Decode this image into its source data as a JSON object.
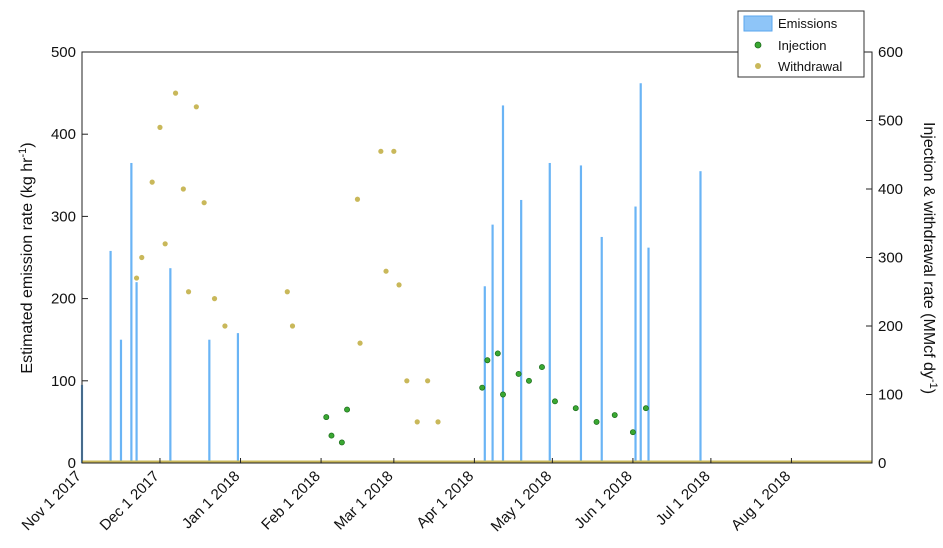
{
  "chart_data": {
    "type": "bar",
    "title": "",
    "ylabel": "Estimated emission rate (kg hr",
    "ylabel_sup": "-1",
    "ylabel_end": ")",
    "y2label": "Injection & withdrawal rate (MMcf dy",
    "y2label_sup": "-1",
    "y2label_end": ")",
    "ylim": [
      0,
      500
    ],
    "y2lim": [
      0,
      600
    ],
    "yticks": [
      "0",
      "100",
      "200",
      "300",
      "400",
      "500"
    ],
    "y2ticks": [
      "0",
      "100",
      "200",
      "300",
      "400",
      "500",
      "600"
    ],
    "x_start": "2017-11-01",
    "xticks": [
      {
        "date": "2017-11-01",
        "label": "Nov 1 2017"
      },
      {
        "date": "2017-12-01",
        "label": "Dec 1 2017"
      },
      {
        "date": "2018-01-01",
        "label": "Jan 1 2018"
      },
      {
        "date": "2018-02-01",
        "label": "Feb 1 2018"
      },
      {
        "date": "2018-03-01",
        "label": "Mar 1 2018"
      },
      {
        "date": "2018-04-01",
        "label": "Apr 1 2018"
      },
      {
        "date": "2018-05-01",
        "label": "May 1 2018"
      },
      {
        "date": "2018-06-01",
        "label": "Jun 1 2018"
      },
      {
        "date": "2018-07-01",
        "label": "Jul 1 2018"
      },
      {
        "date": "2018-08-01",
        "label": "Aug 1 2018"
      }
    ],
    "grid": false,
    "legend_position": "top-right",
    "series": [
      {
        "name": "Emissions",
        "kind": "bar",
        "axis": "left",
        "color": "#6ab4f5",
        "peaks": [
          {
            "date": "2017-11-01",
            "value": 95
          },
          {
            "date": "2017-11-12",
            "value": 258
          },
          {
            "date": "2017-11-16",
            "value": 150
          },
          {
            "date": "2017-11-20",
            "value": 365
          },
          {
            "date": "2017-11-22",
            "value": 220
          },
          {
            "date": "2017-12-05",
            "value": 237
          },
          {
            "date": "2017-12-20",
            "value": 150
          },
          {
            "date": "2017-12-31",
            "value": 158
          },
          {
            "date": "2018-04-05",
            "value": 215
          },
          {
            "date": "2018-04-08",
            "value": 290
          },
          {
            "date": "2018-04-12",
            "value": 435
          },
          {
            "date": "2018-04-19",
            "value": 320
          },
          {
            "date": "2018-04-30",
            "value": 365
          },
          {
            "date": "2018-05-12",
            "value": 362
          },
          {
            "date": "2018-05-20",
            "value": 275
          },
          {
            "date": "2018-06-02",
            "value": 312
          },
          {
            "date": "2018-06-04",
            "value": 462
          },
          {
            "date": "2018-06-07",
            "value": 262
          },
          {
            "date": "2018-06-27",
            "value": 355
          }
        ]
      },
      {
        "name": "Injection",
        "kind": "scatter",
        "axis": "right",
        "color": "#3aa832",
        "points": [
          {
            "date": "2018-02-03",
            "value": 67
          },
          {
            "date": "2018-02-05",
            "value": 40
          },
          {
            "date": "2018-02-09",
            "value": 30
          },
          {
            "date": "2018-02-11",
            "value": 78
          },
          {
            "date": "2018-04-04",
            "value": 110
          },
          {
            "date": "2018-04-06",
            "value": 150
          },
          {
            "date": "2018-04-10",
            "value": 160
          },
          {
            "date": "2018-04-12",
            "value": 100
          },
          {
            "date": "2018-04-18",
            "value": 130
          },
          {
            "date": "2018-04-22",
            "value": 120
          },
          {
            "date": "2018-04-27",
            "value": 140
          },
          {
            "date": "2018-05-02",
            "value": 90
          },
          {
            "date": "2018-05-10",
            "value": 80
          },
          {
            "date": "2018-05-18",
            "value": 60
          },
          {
            "date": "2018-05-25",
            "value": 70
          },
          {
            "date": "2018-06-01",
            "value": 45
          },
          {
            "date": "2018-06-06",
            "value": 80
          }
        ]
      },
      {
        "name": "Withdrawal",
        "kind": "scatter",
        "axis": "right",
        "color": "#c9b85a",
        "points": [
          {
            "date": "2017-11-22",
            "value": 270
          },
          {
            "date": "2017-11-24",
            "value": 300
          },
          {
            "date": "2017-11-28",
            "value": 410
          },
          {
            "date": "2017-12-01",
            "value": 490
          },
          {
            "date": "2017-12-03",
            "value": 320
          },
          {
            "date": "2017-12-07",
            "value": 540
          },
          {
            "date": "2017-12-10",
            "value": 400
          },
          {
            "date": "2017-12-12",
            "value": 250
          },
          {
            "date": "2017-12-15",
            "value": 520
          },
          {
            "date": "2017-12-18",
            "value": 380
          },
          {
            "date": "2017-12-22",
            "value": 240
          },
          {
            "date": "2017-12-26",
            "value": 200
          },
          {
            "date": "2018-01-19",
            "value": 250
          },
          {
            "date": "2018-01-21",
            "value": 200
          },
          {
            "date": "2018-02-15",
            "value": 385
          },
          {
            "date": "2018-02-16",
            "value": 175
          },
          {
            "date": "2018-02-24",
            "value": 455
          },
          {
            "date": "2018-02-26",
            "value": 280
          },
          {
            "date": "2018-03-01",
            "value": 455
          },
          {
            "date": "2018-03-03",
            "value": 260
          },
          {
            "date": "2018-03-06",
            "value": 120
          },
          {
            "date": "2018-03-10",
            "value": 60
          },
          {
            "date": "2018-03-14",
            "value": 120
          },
          {
            "date": "2018-03-18",
            "value": 60
          }
        ]
      }
    ]
  }
}
